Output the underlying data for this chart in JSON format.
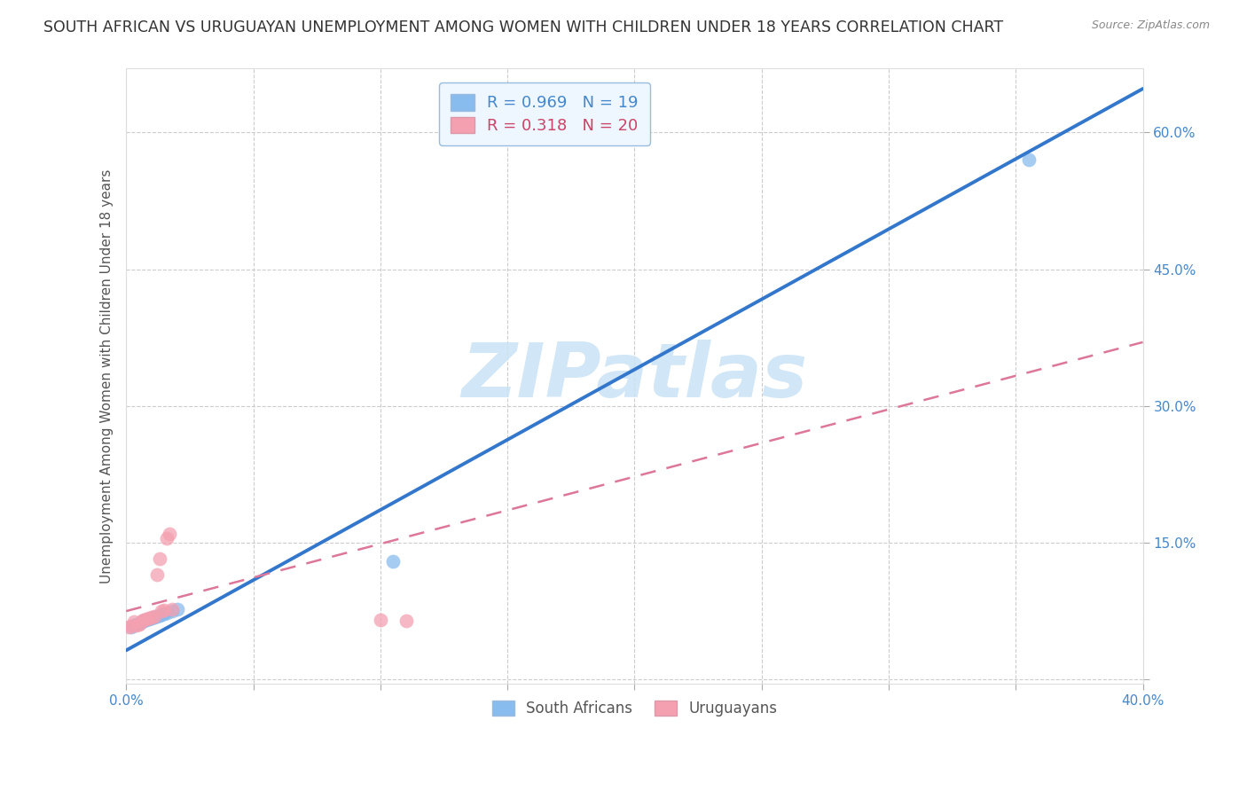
{
  "title": "SOUTH AFRICAN VS URUGUAYAN UNEMPLOYMENT AMONG WOMEN WITH CHILDREN UNDER 18 YEARS CORRELATION CHART",
  "source": "Source: ZipAtlas.com",
  "xlim": [
    0.0,
    0.4
  ],
  "ylim": [
    -0.005,
    0.67
  ],
  "x_tick_vals": [
    0.0,
    0.05,
    0.1,
    0.15,
    0.2,
    0.25,
    0.3,
    0.35,
    0.4
  ],
  "y_tick_vals": [
    0.0,
    0.15,
    0.3,
    0.45,
    0.6
  ],
  "x_tick_labels": [
    "0.0%",
    "",
    "",
    "",
    "",
    "",
    "",
    "",
    "40.0%"
  ],
  "y_tick_labels": [
    "",
    "15.0%",
    "30.0%",
    "45.0%",
    "60.0%"
  ],
  "legend_label_sa": "R = 0.969   N = 19",
  "legend_label_uy": "R = 0.318   N = 20",
  "legend_color_sa": "#88bbee",
  "legend_color_uy": "#f4a0b0",
  "legend_text_color_sa": "#4488cc",
  "legend_text_color_uy": "#cc4466",
  "legend_facecolor": "#eef6ff",
  "legend_edgecolor": "#99bbdd",
  "sa_line_color": "#3377cc",
  "sa_line_x0": 0.0,
  "sa_line_y0": 0.032,
  "sa_line_x1": 0.4,
  "sa_line_y1": 0.648,
  "uy_line_color": "#dd7799",
  "uy_line_x0": 0.0,
  "uy_line_y0": 0.075,
  "uy_line_x1": 0.4,
  "uy_line_y1": 0.37,
  "watermark_text": "ZIPatlas",
  "watermark_color": "#cce4f5",
  "background_color": "#ffffff",
  "grid_color": "#cccccc",
  "grid_linestyle": "--",
  "sa_point_color": "#88bbee",
  "uy_point_color": "#f4a0b0",
  "point_size": 130,
  "point_alpha": 0.75,
  "title_fontsize": 12.5,
  "source_fontsize": 9,
  "axis_label_fontsize": 11,
  "tick_fontsize": 11,
  "tick_color": "#4488cc",
  "sa_points_x": [
    0.002,
    0.003,
    0.004,
    0.005,
    0.006,
    0.007,
    0.008,
    0.009,
    0.01,
    0.011,
    0.012,
    0.013,
    0.014,
    0.015,
    0.016,
    0.018,
    0.02,
    0.105,
    0.355
  ],
  "sa_points_y": [
    0.058,
    0.06,
    0.061,
    0.062,
    0.063,
    0.064,
    0.065,
    0.066,
    0.067,
    0.068,
    0.069,
    0.07,
    0.071,
    0.072,
    0.073,
    0.075,
    0.077,
    0.13,
    0.57
  ],
  "uy_points_x": [
    0.001,
    0.002,
    0.003,
    0.004,
    0.005,
    0.006,
    0.007,
    0.008,
    0.009,
    0.01,
    0.011,
    0.012,
    0.013,
    0.014,
    0.015,
    0.016,
    0.017,
    0.018,
    0.1,
    0.11
  ],
  "uy_points_y": [
    0.058,
    0.059,
    0.063,
    0.06,
    0.061,
    0.064,
    0.065,
    0.066,
    0.067,
    0.068,
    0.069,
    0.115,
    0.133,
    0.075,
    0.076,
    0.155,
    0.16,
    0.077,
    0.065,
    0.064
  ],
  "bottom_legend_sa": "South Africans",
  "bottom_legend_uy": "Uruguayans"
}
